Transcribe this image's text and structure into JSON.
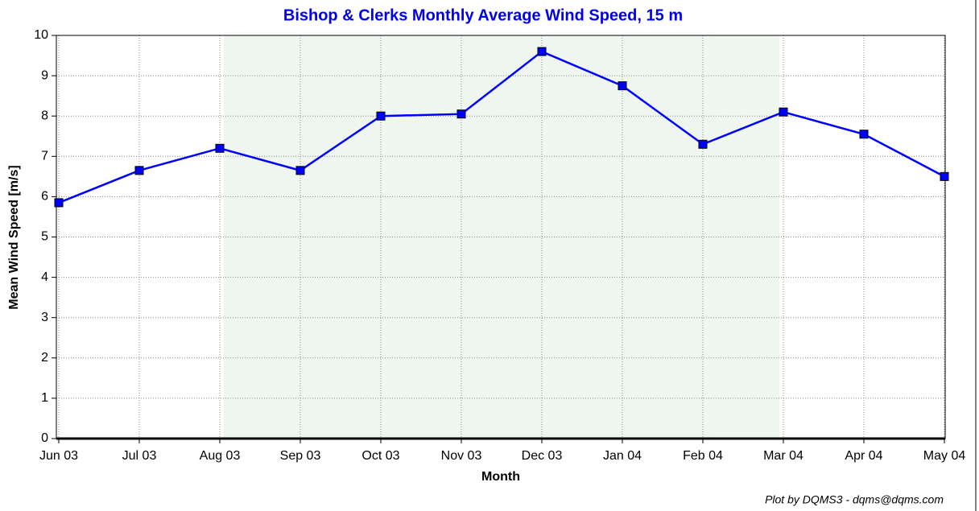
{
  "chart_data": {
    "type": "line",
    "title": "Bishop & Clerks Monthly Average Wind Speed, 15 m",
    "x_label": "Month",
    "y_label": "Mean Wind Speed [m/s]",
    "footnote": "Plot by DQMS3 - dqms@dqms.com",
    "categories": [
      "Jun 03",
      "Jul 03",
      "Aug 03",
      "Sep 03",
      "Oct 03",
      "Nov 03",
      "Dec 03",
      "Jan 04",
      "Feb 04",
      "Mar 04",
      "Apr 04",
      "May 04"
    ],
    "series": [
      {
        "color": "#0000ff",
        "values": [
          5.85,
          6.65,
          7.2,
          6.65,
          8.0,
          8.05,
          9.6,
          8.75,
          7.3,
          8.1,
          7.55,
          6.5
        ]
      }
    ],
    "ylim": [
      0,
      10
    ],
    "yticks": [
      0,
      1,
      2,
      3,
      4,
      5,
      6,
      7,
      8,
      9,
      10
    ],
    "grid": true
  }
}
